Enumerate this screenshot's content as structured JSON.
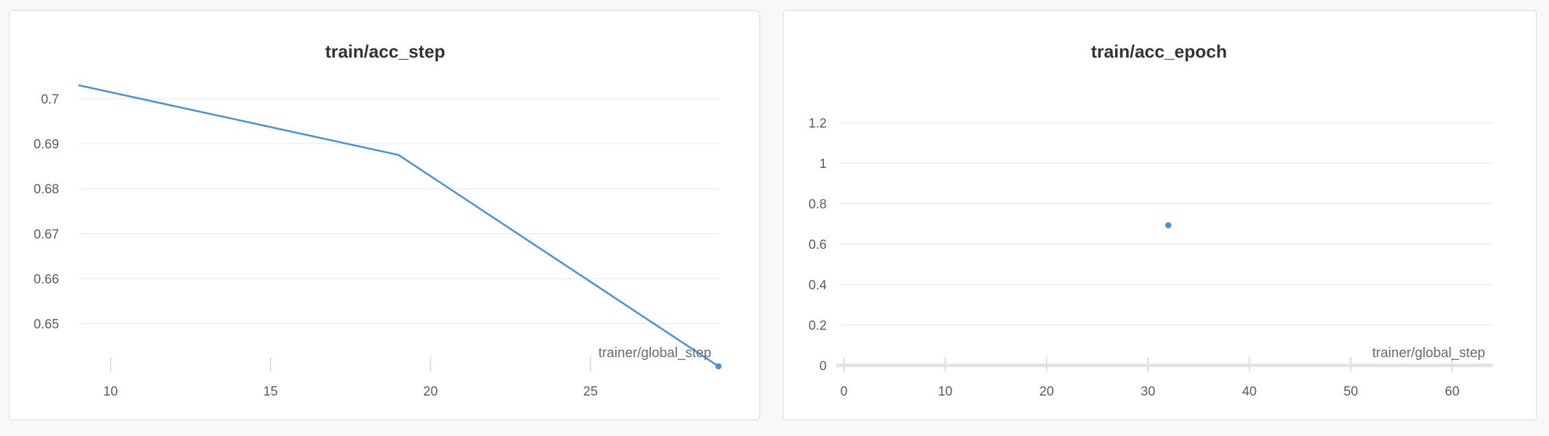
{
  "chart_data": [
    {
      "type": "line",
      "title": "train/acc_step",
      "xlabel": "trainer/global_step",
      "ylabel": "",
      "xlim": [
        9,
        29
      ],
      "ylim": [
        0.64,
        0.703
      ],
      "x_ticks": [
        10,
        15,
        20,
        25
      ],
      "y_ticks": [
        0.65,
        0.66,
        0.67,
        0.68,
        0.69,
        0.7
      ],
      "y_tick_labels": [
        "0.65",
        "0.66",
        "0.67",
        "0.68",
        "0.69",
        "0.7"
      ],
      "grid": true,
      "series": [
        {
          "x": [
            9,
            19,
            29
          ],
          "y": [
            0.703,
            0.6875,
            0.6405
          ],
          "color": "#4a90d9"
        }
      ]
    },
    {
      "type": "scatter",
      "title": "train/acc_epoch",
      "xlabel": "trainer/global_step",
      "ylabel": "",
      "xlim": [
        0,
        64
      ],
      "ylim": [
        0,
        1.3
      ],
      "x_ticks": [
        0,
        10,
        20,
        30,
        40,
        50,
        60
      ],
      "y_ticks": [
        0,
        0.2,
        0.4,
        0.6,
        0.8,
        1,
        1.2
      ],
      "y_tick_labels": [
        "0",
        "0.2",
        "0.4",
        "0.6",
        "0.8",
        "1",
        "1.2"
      ],
      "grid": true,
      "series": [
        {
          "x": [
            32
          ],
          "y": [
            0.693
          ],
          "color": "#4a90d9"
        }
      ]
    }
  ]
}
